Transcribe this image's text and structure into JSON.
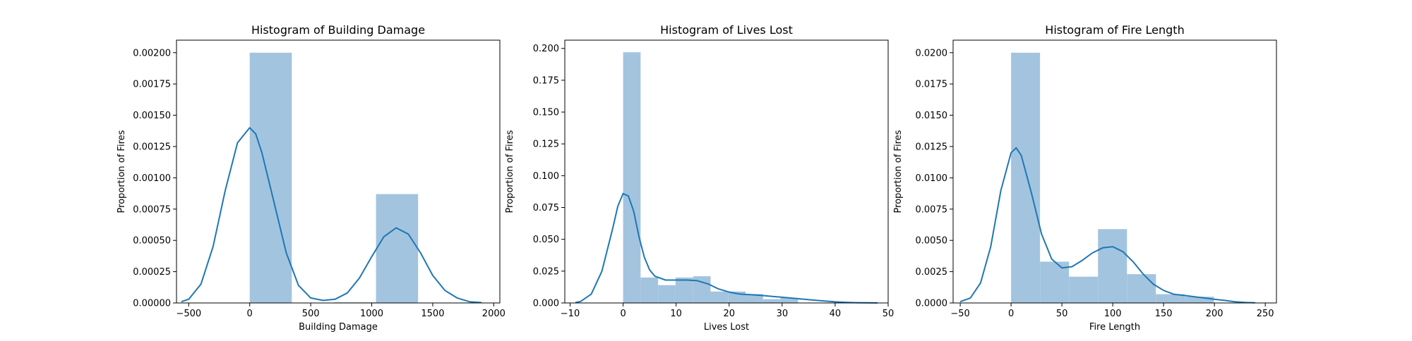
{
  "chart_data": [
    {
      "type": "histogram",
      "title": "Histogram of Building Damage",
      "xlabel": "Building Damage",
      "ylabel": "Proportion of Fires",
      "xlim": [
        -600,
        2050
      ],
      "ylim": [
        0,
        0.0021
      ],
      "xticks": [
        -500,
        0,
        500,
        1000,
        1500,
        2000
      ],
      "xtick_labels": [
        "−500",
        "0",
        "500",
        "1000",
        "1500",
        "2000"
      ],
      "yticks": [
        0,
        0.00025,
        0.0005,
        0.00075,
        0.001,
        0.00125,
        0.0015,
        0.00175,
        0.002
      ],
      "ytick_labels": [
        "0.00000",
        "0.00025",
        "0.00050",
        "0.00075",
        "0.00100",
        "0.00125",
        "0.00150",
        "0.00175",
        "0.00200"
      ],
      "bins": [
        {
          "x0": 0,
          "x1": 345,
          "value": 0.002
        },
        {
          "x0": 345,
          "x1": 690,
          "value": 0.0
        },
        {
          "x0": 690,
          "x1": 1035,
          "value": 5e-06
        },
        {
          "x0": 1035,
          "x1": 1380,
          "value": 0.00087
        }
      ],
      "kde": [
        [
          -560,
          1e-05
        ],
        [
          -500,
          3e-05
        ],
        [
          -400,
          0.00015
        ],
        [
          -300,
          0.00045
        ],
        [
          -200,
          0.0009
        ],
        [
          -100,
          0.00128
        ],
        [
          0,
          0.0014
        ],
        [
          50,
          0.00135
        ],
        [
          100,
          0.0012
        ],
        [
          200,
          0.0008
        ],
        [
          300,
          0.0004
        ],
        [
          400,
          0.00014
        ],
        [
          500,
          4e-05
        ],
        [
          600,
          2e-05
        ],
        [
          700,
          3e-05
        ],
        [
          800,
          8e-05
        ],
        [
          900,
          0.0002
        ],
        [
          1000,
          0.00037
        ],
        [
          1100,
          0.00053
        ],
        [
          1200,
          0.0006
        ],
        [
          1300,
          0.00055
        ],
        [
          1400,
          0.0004
        ],
        [
          1500,
          0.00022
        ],
        [
          1600,
          0.0001
        ],
        [
          1700,
          4e-05
        ],
        [
          1800,
          1e-05
        ],
        [
          1900,
          3e-06
        ]
      ]
    },
    {
      "type": "histogram",
      "title": "Histogram of Lives Lost",
      "xlabel": "Lives Lost",
      "ylabel": "Proportion of Fires",
      "xlim": [
        -11,
        50
      ],
      "ylim": [
        0,
        0.2065
      ],
      "xticks": [
        -10,
        0,
        10,
        20,
        30,
        40,
        50
      ],
      "xtick_labels": [
        "−10",
        "0",
        "10",
        "20",
        "30",
        "40",
        "50"
      ],
      "yticks": [
        0,
        0.025,
        0.05,
        0.075,
        0.1,
        0.125,
        0.15,
        0.175,
        0.2
      ],
      "ytick_labels": [
        "0.000",
        "0.025",
        "0.050",
        "0.075",
        "0.100",
        "0.125",
        "0.150",
        "0.175",
        "0.200"
      ],
      "bins": [
        {
          "x0": 0,
          "x1": 3.3,
          "value": 0.197
        },
        {
          "x0": 3.3,
          "x1": 6.6,
          "value": 0.02
        },
        {
          "x0": 6.6,
          "x1": 9.9,
          "value": 0.014
        },
        {
          "x0": 9.9,
          "x1": 13.2,
          "value": 0.02
        },
        {
          "x0": 13.2,
          "x1": 16.5,
          "value": 0.021
        },
        {
          "x0": 16.5,
          "x1": 19.8,
          "value": 0.009
        },
        {
          "x0": 19.8,
          "x1": 23.1,
          "value": 0.009
        },
        {
          "x0": 23.1,
          "x1": 26.4,
          "value": 0.007
        },
        {
          "x0": 26.4,
          "x1": 29.7,
          "value": 0.003
        },
        {
          "x0": 29.7,
          "x1": 33.0,
          "value": 0.004
        }
      ],
      "kde": [
        [
          -9,
          0.0003
        ],
        [
          -8,
          0.0012
        ],
        [
          -6,
          0.007
        ],
        [
          -4,
          0.025
        ],
        [
          -2,
          0.058
        ],
        [
          -1,
          0.076
        ],
        [
          0,
          0.086
        ],
        [
          1,
          0.084
        ],
        [
          2,
          0.072
        ],
        [
          3,
          0.052
        ],
        [
          4,
          0.036
        ],
        [
          5,
          0.026
        ],
        [
          6,
          0.021
        ],
        [
          8,
          0.018
        ],
        [
          10,
          0.018
        ],
        [
          12,
          0.018
        ],
        [
          14,
          0.0175
        ],
        [
          16,
          0.015
        ],
        [
          18,
          0.011
        ],
        [
          20,
          0.0085
        ],
        [
          22,
          0.007
        ],
        [
          24,
          0.0065
        ],
        [
          26,
          0.006
        ],
        [
          28,
          0.0052
        ],
        [
          30,
          0.0045
        ],
        [
          32,
          0.0037
        ],
        [
          34,
          0.003
        ],
        [
          36,
          0.0022
        ],
        [
          38,
          0.0015
        ],
        [
          40,
          0.0009
        ],
        [
          42,
          0.0005
        ],
        [
          44,
          0.0002
        ],
        [
          46,
          0.0001
        ],
        [
          48,
          4e-05
        ]
      ]
    },
    {
      "type": "histogram",
      "title": "Histogram of Fire Length",
      "xlabel": "Fire Length",
      "ylabel": "Proportion of Fires",
      "xlim": [
        -57,
        261
      ],
      "ylim": [
        0,
        0.021
      ],
      "xticks": [
        -50,
        0,
        50,
        100,
        150,
        200,
        250
      ],
      "xtick_labels": [
        "−50",
        "0",
        "50",
        "100",
        "150",
        "200",
        "250"
      ],
      "yticks": [
        0,
        0.0025,
        0.005,
        0.0075,
        0.01,
        0.0125,
        0.015,
        0.0175,
        0.02
      ],
      "ytick_labels": [
        "0.0000",
        "0.0025",
        "0.0050",
        "0.0075",
        "0.0100",
        "0.0125",
        "0.0150",
        "0.0175",
        "0.0200"
      ],
      "bins": [
        {
          "x0": 0,
          "x1": 28.5,
          "value": 0.02
        },
        {
          "x0": 28.5,
          "x1": 57,
          "value": 0.0033
        },
        {
          "x0": 57,
          "x1": 85.5,
          "value": 0.0021
        },
        {
          "x0": 85.5,
          "x1": 114,
          "value": 0.0059
        },
        {
          "x0": 114,
          "x1": 142.5,
          "value": 0.0023
        },
        {
          "x0": 142.5,
          "x1": 171,
          "value": 0.0007
        },
        {
          "x0": 171,
          "x1": 199.5,
          "value": 0.0005
        }
      ],
      "kde": [
        [
          -50,
          0.0001
        ],
        [
          -40,
          0.0004
        ],
        [
          -30,
          0.0016
        ],
        [
          -20,
          0.0045
        ],
        [
          -10,
          0.009
        ],
        [
          0,
          0.012
        ],
        [
          5,
          0.0124
        ],
        [
          10,
          0.0118
        ],
        [
          20,
          0.0088
        ],
        [
          30,
          0.0055
        ],
        [
          40,
          0.0035
        ],
        [
          50,
          0.0028
        ],
        [
          60,
          0.0029
        ],
        [
          70,
          0.0034
        ],
        [
          80,
          0.004
        ],
        [
          90,
          0.0044
        ],
        [
          100,
          0.0045
        ],
        [
          110,
          0.0041
        ],
        [
          120,
          0.0033
        ],
        [
          130,
          0.0023
        ],
        [
          140,
          0.0015
        ],
        [
          150,
          0.001
        ],
        [
          160,
          0.0007
        ],
        [
          170,
          0.0006
        ],
        [
          180,
          0.0005
        ],
        [
          190,
          0.0004
        ],
        [
          200,
          0.0003
        ],
        [
          210,
          0.0002
        ],
        [
          220,
          0.0001
        ],
        [
          230,
          4e-05
        ],
        [
          240,
          1e-05
        ]
      ]
    }
  ],
  "colors": {
    "bar": "#a3c4df",
    "kde": "#1f77b4",
    "axis": "#000000"
  }
}
